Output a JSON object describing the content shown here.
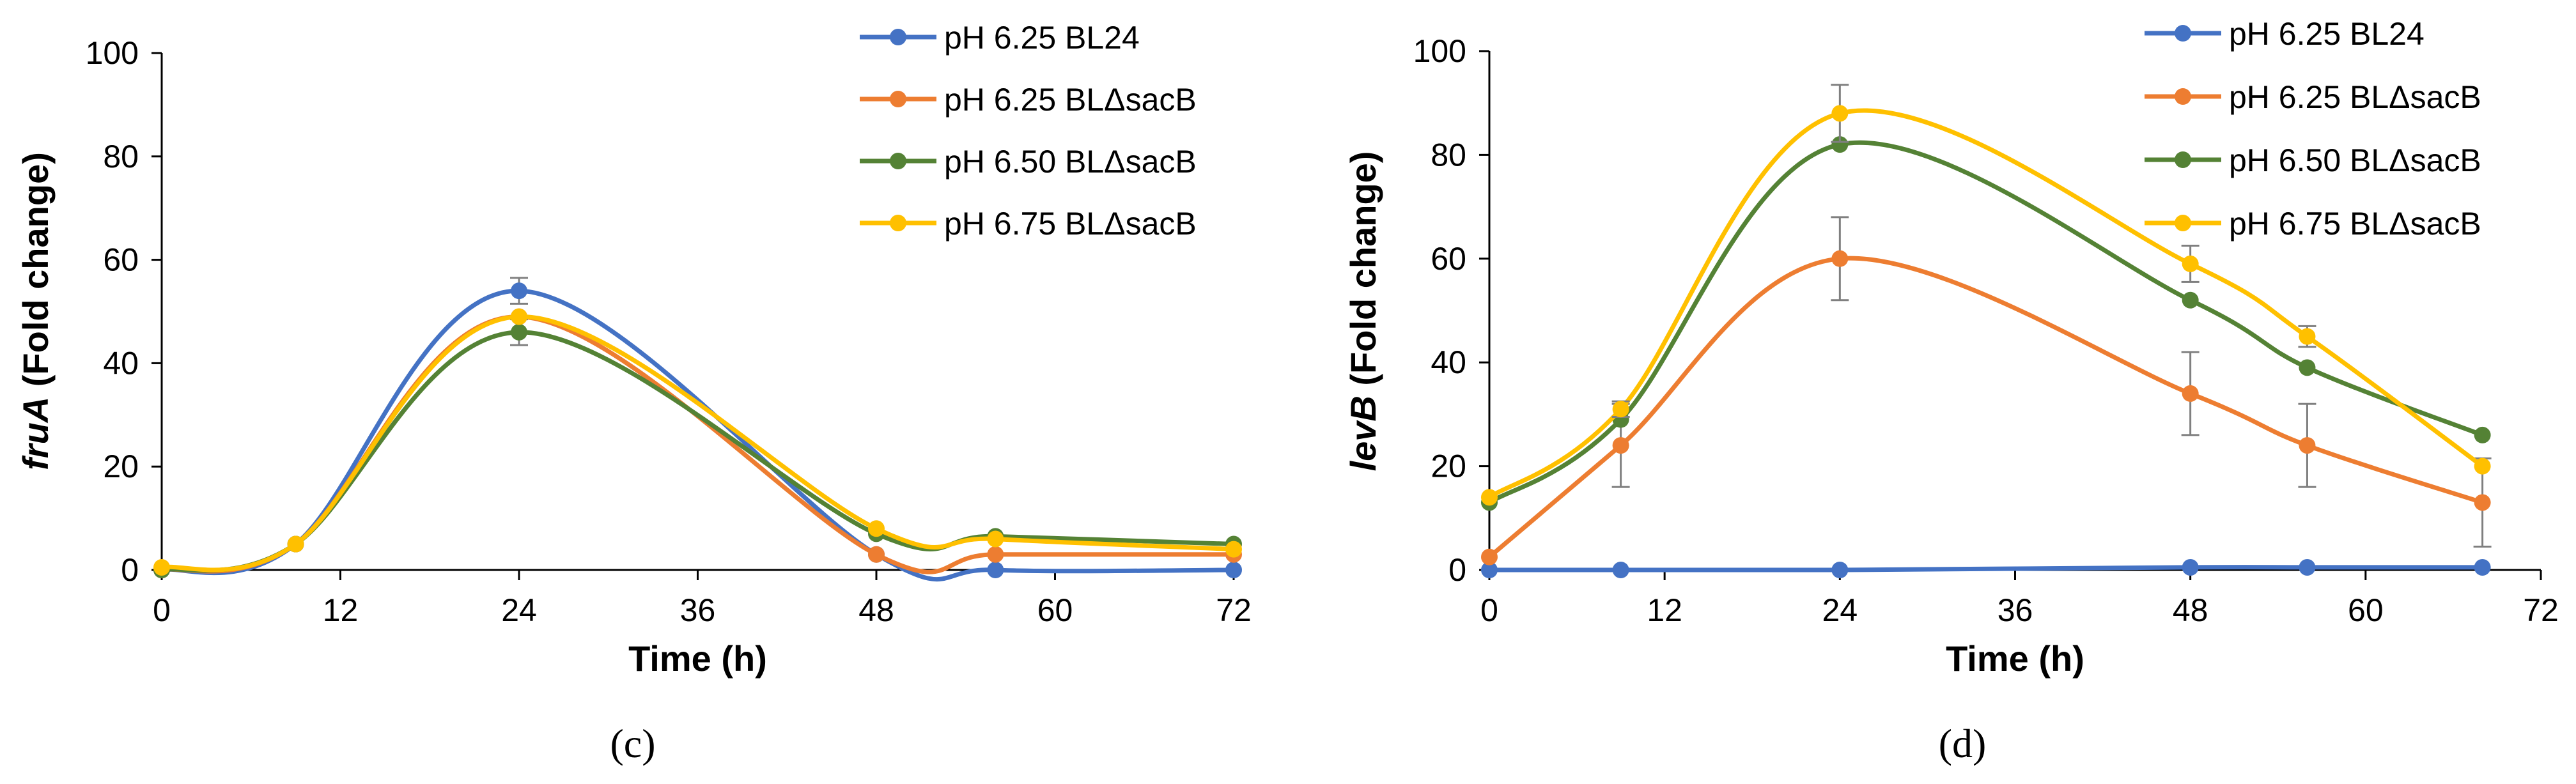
{
  "chart_data": [
    {
      "type": "line",
      "panel_label": "(c)",
      "xlabel": "Time (h)",
      "ylabel_italic": "fruA",
      "ylabel_rest": " (Fold change)",
      "xlim": [
        0,
        72
      ],
      "ylim": [
        0,
        100
      ],
      "xticks": [
        0,
        12,
        24,
        36,
        48,
        60,
        72
      ],
      "yticks": [
        0,
        20,
        40,
        60,
        80,
        100
      ],
      "grid": false,
      "legend": "top-right",
      "x": [
        0,
        9,
        24,
        48,
        56,
        72
      ],
      "series": [
        {
          "name": "pH 6.25 BL24",
          "color": "#4472C4",
          "values": [
            0,
            5,
            54,
            3,
            0,
            0
          ],
          "errors": [
            0,
            0,
            2.5,
            0,
            0,
            0
          ]
        },
        {
          "name": "pH 6.25 BLΔsacB",
          "color": "#ED7D31",
          "values": [
            0,
            5,
            49,
            3,
            3,
            3
          ],
          "errors": [
            0,
            0,
            0,
            0,
            0,
            0
          ]
        },
        {
          "name": "pH 6.50 BLΔsacB",
          "color": "#548235",
          "values": [
            0,
            5,
            46,
            7,
            6.5,
            5
          ],
          "errors": [
            0,
            0,
            2.5,
            0,
            0,
            0
          ]
        },
        {
          "name": "pH 6.75 BLΔsacB",
          "color": "#FFC000",
          "values": [
            0.5,
            5,
            49,
            8,
            6,
            4
          ],
          "errors": [
            0,
            0,
            0,
            0,
            0,
            0
          ]
        }
      ]
    },
    {
      "type": "line",
      "panel_label": "(d)",
      "xlabel": "Time (h)",
      "ylabel_italic": "levB",
      "ylabel_rest": " (Fold change)",
      "xlim": [
        0,
        72
      ],
      "ylim": [
        0,
        100
      ],
      "xticks": [
        0,
        12,
        24,
        36,
        48,
        60,
        72
      ],
      "yticks": [
        0,
        20,
        40,
        60,
        80,
        100
      ],
      "grid": false,
      "legend": "top-right",
      "x": [
        0,
        9,
        24,
        48,
        56,
        68
      ],
      "series": [
        {
          "name": "pH 6.25 BL24",
          "color": "#4472C4",
          "values": [
            0,
            0,
            0,
            0.5,
            0.5,
            0.5
          ],
          "errors": [
            0,
            0,
            0,
            0,
            0,
            0
          ]
        },
        {
          "name": "pH 6.25 BLΔsacB",
          "color": "#ED7D31",
          "values": [
            2.5,
            24,
            60,
            34,
            24,
            13
          ],
          "errors": [
            0,
            8,
            8,
            8,
            8,
            8.5
          ]
        },
        {
          "name": "pH 6.50 BLΔsacB",
          "color": "#548235",
          "values": [
            13,
            29,
            82,
            52,
            39,
            26
          ],
          "errors": [
            0,
            0,
            0,
            0,
            0,
            0
          ]
        },
        {
          "name": "pH 6.75 BLΔsacB",
          "color": "#FFC000",
          "values": [
            14,
            31,
            88,
            59,
            45,
            20
          ],
          "errors": [
            0,
            1.5,
            5.5,
            3.5,
            2,
            0
          ]
        }
      ]
    }
  ]
}
